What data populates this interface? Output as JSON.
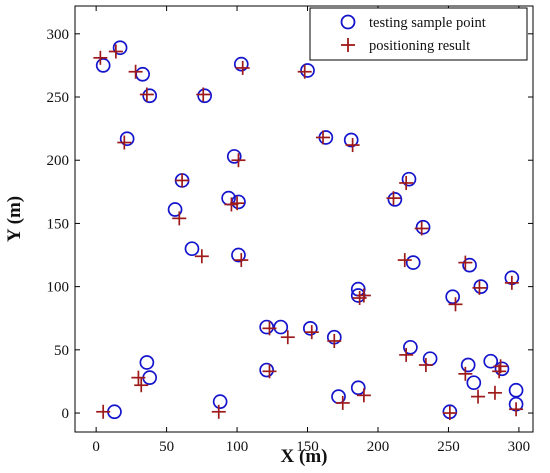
{
  "chart_data": {
    "type": "scatter",
    "title": "",
    "xlabel": "X (m)",
    "ylabel": "Y (m)",
    "xlim": [
      -15,
      310
    ],
    "ylim": [
      -15,
      322
    ],
    "xticks": [
      0,
      50,
      100,
      150,
      200,
      250,
      300
    ],
    "yticks": [
      0,
      50,
      100,
      150,
      200,
      250,
      300
    ],
    "grid": false,
    "legend_position": "top-right",
    "series": [
      {
        "name": "testing sample point",
        "marker": "circle",
        "color": "#1414cc",
        "points": [
          [
            17,
            289
          ],
          [
            5,
            275
          ],
          [
            33,
            268
          ],
          [
            38,
            251
          ],
          [
            77,
            251
          ],
          [
            103,
            276
          ],
          [
            150,
            271
          ],
          [
            22,
            217
          ],
          [
            98,
            203
          ],
          [
            163,
            218
          ],
          [
            181,
            216
          ],
          [
            61,
            184
          ],
          [
            222,
            185
          ],
          [
            56,
            161
          ],
          [
            94,
            170
          ],
          [
            101,
            167
          ],
          [
            212,
            169
          ],
          [
            232,
            147
          ],
          [
            68,
            130
          ],
          [
            101,
            125
          ],
          [
            225,
            119
          ],
          [
            265,
            117
          ],
          [
            273,
            100
          ],
          [
            295,
            107
          ],
          [
            253,
            92
          ],
          [
            186,
            98
          ],
          [
            186,
            93
          ],
          [
            121,
            68
          ],
          [
            131,
            68
          ],
          [
            152,
            67
          ],
          [
            169,
            60
          ],
          [
            223,
            52
          ],
          [
            237,
            43
          ],
          [
            264,
            38
          ],
          [
            280,
            41
          ],
          [
            288,
            35
          ],
          [
            268,
            24
          ],
          [
            298,
            18
          ],
          [
            36,
            40
          ],
          [
            38,
            28
          ],
          [
            121,
            34
          ],
          [
            88,
            9
          ],
          [
            13,
            1
          ],
          [
            172,
            13
          ],
          [
            186,
            20
          ],
          [
            251,
            1
          ],
          [
            298,
            7
          ]
        ]
      },
      {
        "name": "positioning result",
        "marker": "plus",
        "color": "#9e1a1a",
        "points": [
          [
            3,
            281
          ],
          [
            14,
            286
          ],
          [
            28,
            270
          ],
          [
            36,
            252
          ],
          [
            76,
            252
          ],
          [
            104,
            273
          ],
          [
            148,
            270
          ],
          [
            20,
            214
          ],
          [
            101,
            200
          ],
          [
            161,
            218
          ],
          [
            182,
            212
          ],
          [
            61,
            184
          ],
          [
            220,
            182
          ],
          [
            59,
            154
          ],
          [
            96,
            165
          ],
          [
            100,
            166
          ],
          [
            211,
            170
          ],
          [
            231,
            146
          ],
          [
            75,
            124
          ],
          [
            103,
            121
          ],
          [
            219,
            121
          ],
          [
            262,
            119
          ],
          [
            272,
            99
          ],
          [
            295,
            103
          ],
          [
            255,
            86
          ],
          [
            190,
            93
          ],
          [
            187,
            91
          ],
          [
            123,
            67
          ],
          [
            136,
            60
          ],
          [
            153,
            64
          ],
          [
            169,
            57
          ],
          [
            220,
            46
          ],
          [
            234,
            38
          ],
          [
            262,
            31
          ],
          [
            286,
            33
          ],
          [
            287,
            37
          ],
          [
            271,
            13
          ],
          [
            283,
            16
          ],
          [
            30,
            28
          ],
          [
            32,
            22
          ],
          [
            123,
            33
          ],
          [
            87,
            1
          ],
          [
            5,
            1
          ],
          [
            175,
            8
          ],
          [
            190,
            14
          ],
          [
            251,
            0
          ],
          [
            298,
            3
          ]
        ]
      }
    ]
  }
}
